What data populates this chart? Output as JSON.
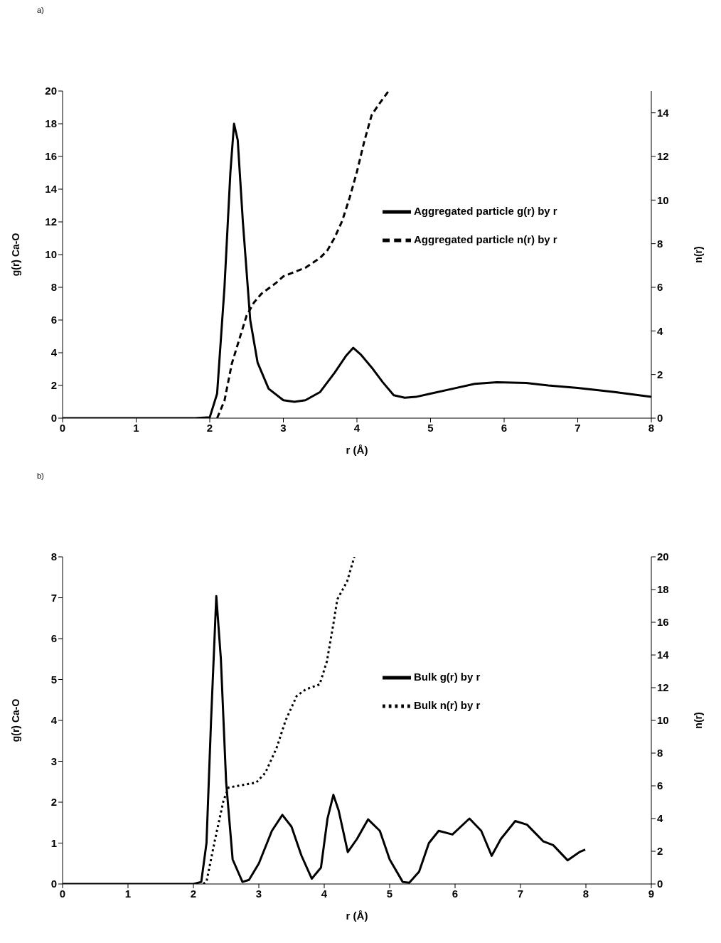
{
  "chart_data": [
    {
      "type": "line",
      "title": "a)",
      "xlabel": "r (Å)",
      "ylabel": "g(r) Ca-O",
      "y2label": "n(r)",
      "xlim": [
        0,
        8
      ],
      "xticks": [
        0,
        1,
        2,
        3,
        4,
        5,
        6,
        7,
        8
      ],
      "ylim": [
        0,
        20
      ],
      "yticks": [
        0,
        2,
        4,
        6,
        8,
        10,
        12,
        14,
        16,
        18,
        20
      ],
      "y2lim": [
        0,
        15
      ],
      "y2ticks": [
        0,
        2,
        4,
        6,
        8,
        10,
        12,
        14
      ],
      "grid": false,
      "legend": "right",
      "marker": "none",
      "series": [
        {
          "name": "Aggregated particle g(r) by r",
          "color": "#000000",
          "line_style": "solid",
          "x": [
            0,
            1.8,
            2.0,
            2.1,
            2.2,
            2.28,
            2.33,
            2.38,
            2.45,
            2.55,
            2.65,
            2.8,
            3.0,
            3.15,
            3.3,
            3.5,
            3.7,
            3.85,
            3.95,
            4.05,
            4.2,
            4.35,
            4.5,
            4.65,
            4.8,
            5.0,
            5.3,
            5.6,
            5.9,
            6.3,
            6.6,
            7.0,
            7.5,
            8.0
          ],
          "values": [
            0,
            0,
            0.05,
            1.5,
            8,
            15,
            18,
            17,
            12,
            6,
            3.4,
            1.8,
            1.1,
            1.0,
            1.1,
            1.6,
            2.8,
            3.8,
            4.3,
            3.9,
            3.1,
            2.2,
            1.4,
            1.25,
            1.3,
            1.5,
            1.8,
            2.1,
            2.2,
            2.15,
            2.0,
            1.85,
            1.6,
            1.3
          ]
        },
        {
          "name": "Aggregated particle n(r) by r",
          "color": "#000000",
          "line_style": "dashed",
          "axis": "y2",
          "x": [
            2.1,
            2.2,
            2.3,
            2.4,
            2.5,
            2.6,
            2.7,
            2.9,
            3.0,
            3.3,
            3.5,
            3.6,
            3.7,
            3.8,
            3.9,
            4.0,
            4.1,
            4.2,
            4.3,
            4.43
          ],
          "values": [
            0,
            0.8,
            2.5,
            3.6,
            4.7,
            5.3,
            5.7,
            6.2,
            6.5,
            6.9,
            7.35,
            7.7,
            8.3,
            9.05,
            10.1,
            11.3,
            12.7,
            13.9,
            14.4,
            15
          ]
        }
      ]
    },
    {
      "type": "line",
      "title": "b)",
      "xlabel": "r (Å)",
      "ylabel": "g(r) Ca-O",
      "y2label": "n(r)",
      "xlim": [
        0,
        9
      ],
      "xticks": [
        0,
        1,
        2,
        3,
        4,
        5,
        6,
        7,
        8,
        9
      ],
      "ylim": [
        0,
        8
      ],
      "yticks": [
        0,
        1,
        2,
        3,
        4,
        5,
        6,
        7,
        8
      ],
      "y2lim": [
        0,
        20
      ],
      "y2ticks": [
        0,
        2,
        4,
        6,
        8,
        10,
        12,
        14,
        16,
        18,
        20
      ],
      "grid": false,
      "legend": "right",
      "marker": "none",
      "series": [
        {
          "name": "Bulk g(r) by r",
          "color": "#000000",
          "line_style": "solid",
          "x": [
            0,
            2.0,
            2.12,
            2.2,
            2.27,
            2.35,
            2.42,
            2.5,
            2.6,
            2.75,
            2.85,
            3.0,
            3.2,
            3.36,
            3.5,
            3.65,
            3.81,
            3.95,
            4.05,
            4.14,
            4.22,
            4.36,
            4.5,
            4.67,
            4.85,
            5.0,
            5.2,
            5.3,
            5.45,
            5.6,
            5.75,
            5.96,
            6.22,
            6.4,
            6.56,
            6.7,
            6.92,
            7.1,
            7.35,
            7.5,
            7.72,
            7.9,
            7.99
          ],
          "values": [
            0,
            0,
            0.05,
            1.0,
            4,
            7.04,
            5.5,
            2.5,
            0.6,
            0.05,
            0.1,
            0.5,
            1.3,
            1.69,
            1.4,
            0.7,
            0.13,
            0.4,
            1.6,
            2.18,
            1.8,
            0.78,
            1.1,
            1.58,
            1.3,
            0.6,
            0.05,
            0.03,
            0.3,
            1.0,
            1.3,
            1.21,
            1.6,
            1.3,
            0.69,
            1.1,
            1.54,
            1.45,
            1.04,
            0.95,
            0.58,
            0.78,
            0.84
          ]
        },
        {
          "name": "Bulk n(r) by r",
          "color": "#000000",
          "line_style": "dotted",
          "axis": "y2",
          "x": [
            2.15,
            2.2,
            2.33,
            2.46,
            2.54,
            2.96,
            3.1,
            3.27,
            3.41,
            3.58,
            3.72,
            3.93,
            4.04,
            4.14,
            4.2,
            4.35,
            4.46
          ],
          "values": [
            0,
            0.14,
            2.7,
            5.1,
            5.9,
            6.2,
            6.8,
            8.3,
            10.0,
            11.5,
            11.9,
            12.2,
            13.6,
            15.9,
            17.4,
            18.5,
            20.0
          ]
        }
      ]
    }
  ]
}
